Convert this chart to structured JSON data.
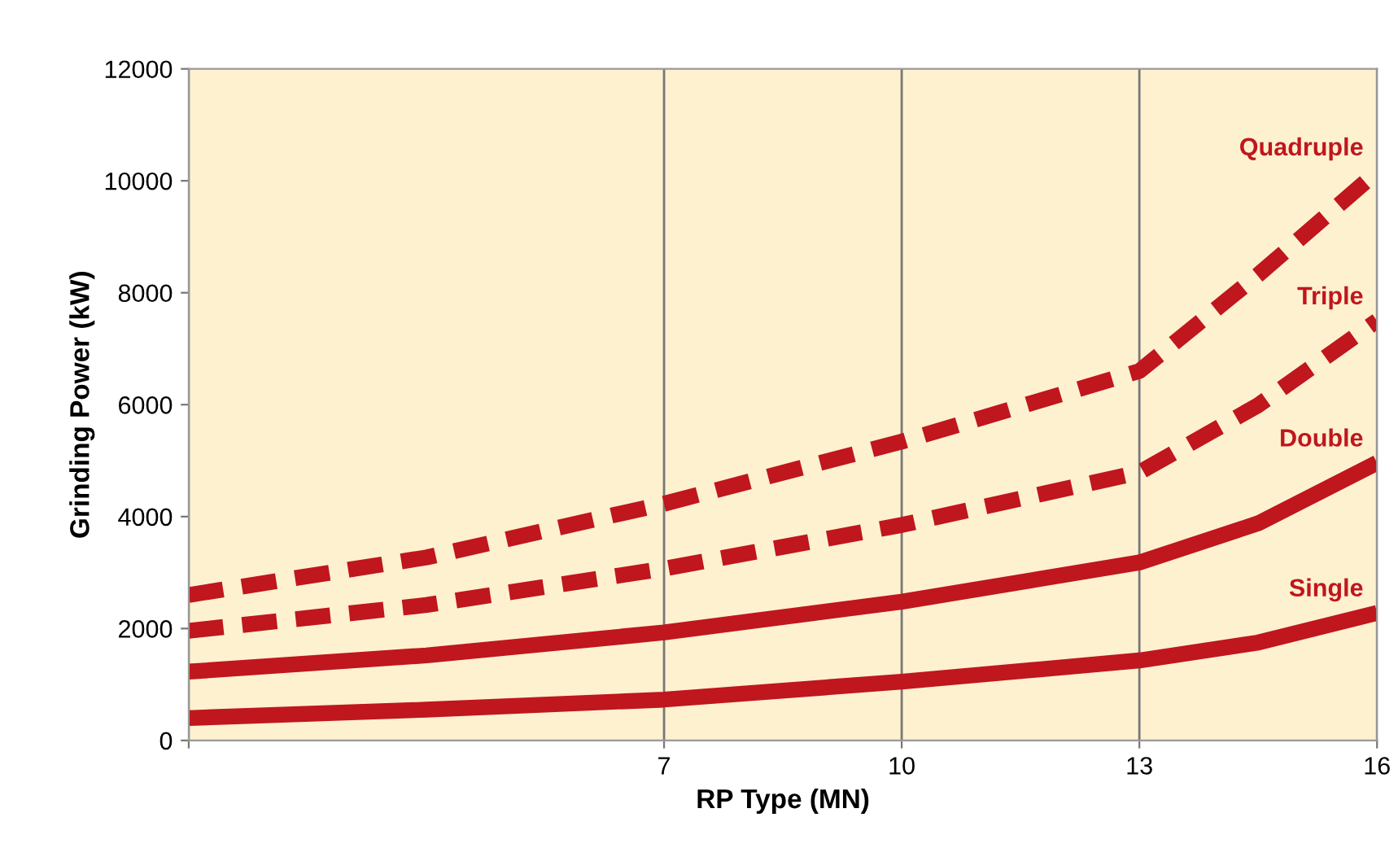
{
  "chart_data": {
    "type": "line",
    "xlabel": "RP Type (MN)",
    "ylabel": "Grinding Power (kW)",
    "x": [
      1,
      4,
      7,
      10,
      13,
      14.5,
      16
    ],
    "xlim": [
      1,
      16
    ],
    "xticks": [
      {
        "value": 1,
        "label": null
      },
      7,
      10,
      13,
      16
    ],
    "ylim": [
      0,
      12000
    ],
    "yticks": [
      0,
      2000,
      4000,
      6000,
      8000,
      10000,
      12000
    ],
    "grid": "x",
    "legend": false,
    "marker": "none",
    "series": [
      {
        "name": "Single",
        "color": "#c0161e",
        "line_style": "solid",
        "values": [
          400,
          550,
          730,
          1050,
          1430,
          1750,
          2280
        ]
      },
      {
        "name": "Double",
        "color": "#c0161e",
        "line_style": "solid",
        "values": [
          1230,
          1520,
          1930,
          2480,
          3180,
          3880,
          4960
        ]
      },
      {
        "name": "Triple",
        "color": "#c0161e",
        "line_style": "dashed",
        "values": [
          1960,
          2420,
          3070,
          3850,
          4790,
          5990,
          7500
        ]
      },
      {
        "name": "Quadruple",
        "color": "#c0161e",
        "line_style": "dashed",
        "values": [
          2600,
          3270,
          4230,
          5340,
          6600,
          8320,
          10160
        ]
      }
    ]
  }
}
